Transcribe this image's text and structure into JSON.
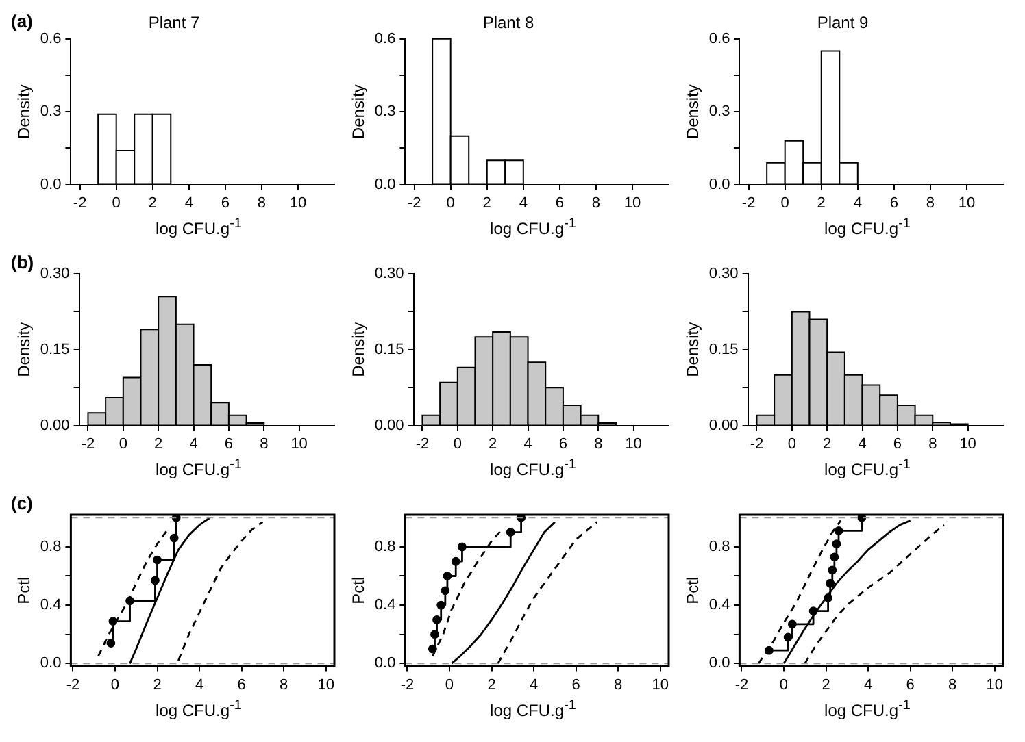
{
  "chart_data": [
    {
      "type": "histogram",
      "title": "Plant 7",
      "annotations": [
        "(a)"
      ],
      "bins": [
        -1,
        0,
        1,
        2,
        3
      ],
      "values": [
        0.29,
        0.14,
        0.29,
        0.29
      ],
      "color": "#ffffff",
      "xlabel": "log CFU.g$^{-1}$",
      "ylabel": "Density",
      "xlim": [
        -2.5,
        12
      ],
      "xticks": [
        -2,
        0,
        2,
        4,
        6,
        8,
        10
      ],
      "ylim": [
        0,
        0.6
      ],
      "yticks": [
        {
          "value": 0,
          "label": "0.0"
        },
        {
          "value": 0.15,
          "label": null
        },
        {
          "value": 0.3,
          "label": "0.3"
        },
        {
          "value": 0.45,
          "label": null
        },
        {
          "value": 0.6,
          "label": "0.6"
        }
      ]
    },
    {
      "type": "histogram",
      "title": "Plant 8",
      "bins": [
        -1,
        0,
        1,
        2,
        3,
        4
      ],
      "values": [
        0.6,
        0.2,
        0,
        0.1,
        0.1
      ],
      "color": "#ffffff",
      "xlabel": "log CFU.g$^{-1}$",
      "ylabel": "Density",
      "xlim": [
        -2.5,
        12
      ],
      "xticks": [
        -2,
        0,
        2,
        4,
        6,
        8,
        10
      ],
      "ylim": [
        0,
        0.6
      ],
      "yticks": [
        {
          "value": 0,
          "label": "0.0"
        },
        {
          "value": 0.15,
          "label": null
        },
        {
          "value": 0.3,
          "label": "0.3"
        },
        {
          "value": 0.45,
          "label": null
        },
        {
          "value": 0.6,
          "label": "0.6"
        }
      ]
    },
    {
      "type": "histogram",
      "title": "Plant 9",
      "bins": [
        -1,
        0,
        1,
        2,
        3,
        4
      ],
      "values": [
        0.09,
        0.18,
        0.09,
        0.55,
        0.09
      ],
      "color": "#ffffff",
      "xlabel": "log CFU.g$^{-1}$",
      "ylabel": "Density",
      "xlim": [
        -2.5,
        12
      ],
      "xticks": [
        -2,
        0,
        2,
        4,
        6,
        8,
        10
      ],
      "ylim": [
        0,
        0.6
      ],
      "yticks": [
        {
          "value": 0,
          "label": "0.0"
        },
        {
          "value": 0.15,
          "label": null
        },
        {
          "value": 0.3,
          "label": "0.3"
        },
        {
          "value": 0.45,
          "label": null
        },
        {
          "value": 0.6,
          "label": "0.6"
        }
      ]
    },
    {
      "type": "histogram",
      "annotations": [
        "(b)"
      ],
      "bins": [
        -2,
        -1,
        0,
        1,
        2,
        3,
        4,
        5,
        6,
        7,
        8
      ],
      "values": [
        0.025,
        0.055,
        0.095,
        0.19,
        0.255,
        0.2,
        0.12,
        0.045,
        0.02,
        0.005
      ],
      "color": "#c8c8c8",
      "xlabel": "log CFU.g$^{-1}$",
      "ylabel": "Density",
      "xlim": [
        -2.5,
        12
      ],
      "xticks": [
        -2,
        0,
        2,
        4,
        6,
        8,
        10
      ],
      "ylim": [
        0,
        0.3
      ],
      "yticks": [
        {
          "value": 0,
          "label": "0.00"
        },
        {
          "value": 0.075,
          "label": null
        },
        {
          "value": 0.15,
          "label": "0.15"
        },
        {
          "value": 0.225,
          "label": null
        },
        {
          "value": 0.3,
          "label": "0.30"
        }
      ]
    },
    {
      "type": "histogram",
      "bins": [
        -2,
        -1,
        0,
        1,
        2,
        3,
        4,
        5,
        6,
        7,
        8,
        9
      ],
      "values": [
        0.02,
        0.085,
        0.115,
        0.175,
        0.185,
        0.175,
        0.125,
        0.075,
        0.04,
        0.02,
        0.005
      ],
      "color": "#c8c8c8",
      "xlabel": "log CFU.g$^{-1}$",
      "ylabel": "Density",
      "xlim": [
        -2.5,
        12
      ],
      "xticks": [
        -2,
        0,
        2,
        4,
        6,
        8,
        10
      ],
      "ylim": [
        0,
        0.3
      ],
      "yticks": [
        {
          "value": 0,
          "label": "0.00"
        },
        {
          "value": 0.075,
          "label": null
        },
        {
          "value": 0.15,
          "label": "0.15"
        },
        {
          "value": 0.225,
          "label": null
        },
        {
          "value": 0.3,
          "label": "0.30"
        }
      ]
    },
    {
      "type": "histogram",
      "bins": [
        -2,
        -1,
        0,
        1,
        2,
        3,
        4,
        5,
        6,
        7,
        8,
        9,
        10
      ],
      "values": [
        0.02,
        0.1,
        0.225,
        0.21,
        0.145,
        0.1,
        0.08,
        0.06,
        0.04,
        0.02,
        0.006,
        0.003
      ],
      "color": "#c8c8c8",
      "xlabel": "log CFU.g$^{-1}$",
      "ylabel": "Density",
      "xlim": [
        -2.5,
        12
      ],
      "xticks": [
        -2,
        0,
        2,
        4,
        6,
        8,
        10
      ],
      "ylim": [
        0,
        0.3
      ],
      "yticks": [
        {
          "value": 0,
          "label": "0.00"
        },
        {
          "value": 0.075,
          "label": null
        },
        {
          "value": 0.15,
          "label": "0.15"
        },
        {
          "value": 0.225,
          "label": null
        },
        {
          "value": 0.3,
          "label": "0.30"
        }
      ]
    },
    {
      "type": "line",
      "annotations": [
        "(c)"
      ],
      "xlabel": "log CFU.g$^{-1}$",
      "ylabel": "Pctl",
      "xlim": [
        -2.1,
        10.4
      ],
      "xticks": [
        -2,
        0,
        2,
        4,
        6,
        8,
        10
      ],
      "ylim": [
        -0.02,
        1.02
      ],
      "yticks": [
        {
          "value": 0,
          "label": "0.0"
        },
        {
          "value": 0.2,
          "label": null
        },
        {
          "value": 0.4,
          "label": "0.4"
        },
        {
          "value": 0.6,
          "label": null
        },
        {
          "value": 0.8,
          "label": "0.8"
        }
      ],
      "ref_lines": [
        {
          "axis": "y",
          "value": 0,
          "color": "#999999",
          "line_style": "dashed"
        },
        {
          "axis": "y",
          "value": 1,
          "color": "#999999",
          "line_style": "dashed"
        }
      ],
      "series": [
        {
          "type": "step",
          "marker": "circle",
          "color": "#000000",
          "x": [
            -0.2,
            -0.1,
            0.7,
            1.9,
            2.0,
            2.8,
            2.9
          ],
          "values": [
            0.14,
            0.29,
            0.43,
            0.57,
            0.71,
            0.86,
            1.0
          ]
        },
        {
          "type": "line",
          "marker": "none",
          "color": "#000000",
          "line_style": "solid",
          "x": [
            0.7,
            1.0,
            1.5,
            2.0,
            2.5,
            3.0,
            3.5,
            4.0,
            4.5
          ],
          "values": [
            0,
            0.1,
            0.28,
            0.45,
            0.62,
            0.78,
            0.88,
            0.95,
            1.0
          ]
        },
        {
          "type": "line",
          "marker": "none",
          "color": "#000000",
          "line_style": "dashed",
          "x": [
            -0.8,
            -0.3,
            0.5,
            1.0,
            1.5,
            2.0,
            2.5
          ],
          "values": [
            0.05,
            0.2,
            0.4,
            0.55,
            0.7,
            0.82,
            0.92
          ]
        },
        {
          "type": "line",
          "marker": "none",
          "color": "#000000",
          "line_style": "dashed",
          "x": [
            3.0,
            3.5,
            4.0,
            4.5,
            5.0,
            5.5,
            6.0,
            6.5,
            7.0
          ],
          "values": [
            0.02,
            0.2,
            0.35,
            0.5,
            0.65,
            0.75,
            0.84,
            0.92,
            0.97
          ]
        }
      ]
    },
    {
      "type": "line",
      "xlabel": "log CFU.g$^{-1}$",
      "ylabel": "Pctl",
      "xlim": [
        -2.1,
        10.4
      ],
      "xticks": [
        -2,
        0,
        2,
        4,
        6,
        8,
        10
      ],
      "ylim": [
        -0.02,
        1.02
      ],
      "yticks": [
        {
          "value": 0,
          "label": "0.0"
        },
        {
          "value": 0.2,
          "label": null
        },
        {
          "value": 0.4,
          "label": "0.4"
        },
        {
          "value": 0.6,
          "label": null
        },
        {
          "value": 0.8,
          "label": "0.8"
        }
      ],
      "ref_lines": [
        {
          "axis": "y",
          "value": 0,
          "color": "#999999",
          "line_style": "dashed"
        },
        {
          "axis": "y",
          "value": 1,
          "color": "#999999",
          "line_style": "dashed"
        }
      ],
      "series": [
        {
          "type": "step",
          "marker": "circle",
          "color": "#000000",
          "x": [
            -0.8,
            -0.7,
            -0.6,
            -0.4,
            -0.2,
            -0.1,
            0.3,
            0.6,
            2.9,
            3.4
          ],
          "values": [
            0.1,
            0.2,
            0.3,
            0.4,
            0.5,
            0.6,
            0.7,
            0.8,
            0.9,
            1.0
          ]
        },
        {
          "type": "line",
          "marker": "none",
          "color": "#000000",
          "line_style": "solid",
          "x": [
            0.1,
            0.5,
            1.0,
            1.5,
            2.0,
            2.5,
            3.0,
            3.5,
            4.0,
            4.5,
            5.0
          ],
          "values": [
            0,
            0.05,
            0.12,
            0.2,
            0.3,
            0.41,
            0.53,
            0.66,
            0.78,
            0.9,
            0.97
          ]
        },
        {
          "type": "line",
          "marker": "none",
          "color": "#000000",
          "line_style": "dashed",
          "x": [
            -0.8,
            -0.3,
            0.1,
            0.7,
            1.3,
            2.0,
            2.5
          ],
          "values": [
            0.05,
            0.2,
            0.37,
            0.55,
            0.69,
            0.84,
            0.92
          ]
        },
        {
          "type": "line",
          "marker": "none",
          "color": "#000000",
          "line_style": "dashed",
          "x": [
            2.3,
            3.0,
            3.5,
            4.0,
            5.0,
            6.0,
            7.0
          ],
          "values": [
            0,
            0.18,
            0.32,
            0.45,
            0.65,
            0.85,
            0.97
          ]
        }
      ]
    },
    {
      "type": "line",
      "xlabel": "log CFU.g$^{-1}$",
      "ylabel": "Pctl",
      "xlim": [
        -2.1,
        10.4
      ],
      "xticks": [
        -2,
        0,
        2,
        4,
        6,
        8,
        10
      ],
      "ylim": [
        -0.02,
        1.02
      ],
      "yticks": [
        {
          "value": 0,
          "label": "0.0"
        },
        {
          "value": 0.2,
          "label": null
        },
        {
          "value": 0.4,
          "label": "0.4"
        },
        {
          "value": 0.6,
          "label": null
        },
        {
          "value": 0.8,
          "label": "0.8"
        }
      ],
      "ref_lines": [
        {
          "axis": "y",
          "value": 0,
          "color": "#999999",
          "line_style": "dashed"
        },
        {
          "axis": "y",
          "value": 1,
          "color": "#999999",
          "line_style": "dashed"
        }
      ],
      "series": [
        {
          "type": "step",
          "marker": "circle",
          "color": "#000000",
          "x": [
            -0.7,
            0.2,
            0.4,
            1.4,
            2.1,
            2.2,
            2.3,
            2.4,
            2.5,
            2.6,
            3.7
          ],
          "values": [
            0.09,
            0.18,
            0.27,
            0.36,
            0.45,
            0.55,
            0.64,
            0.73,
            0.82,
            0.91,
            1.0
          ]
        },
        {
          "type": "line",
          "marker": "none",
          "color": "#000000",
          "line_style": "solid",
          "x": [
            0,
            0.5,
            1,
            1.5,
            2,
            2.5,
            3,
            3.5,
            4,
            4.5,
            5,
            5.5,
            6
          ],
          "values": [
            0,
            0.12,
            0.24,
            0.35,
            0.45,
            0.55,
            0.63,
            0.7,
            0.78,
            0.84,
            0.9,
            0.95,
            0.98
          ]
        },
        {
          "type": "line",
          "marker": "none",
          "color": "#000000",
          "line_style": "dashed",
          "x": [
            -1.2,
            -0.5,
            0,
            0.6,
            1.2,
            1.8,
            2.3,
            2.7
          ],
          "values": [
            0,
            0.15,
            0.28,
            0.42,
            0.6,
            0.77,
            0.9,
            0.98
          ]
        },
        {
          "type": "line",
          "marker": "none",
          "color": "#000000",
          "line_style": "dashed",
          "x": [
            1,
            1.5,
            2,
            2.5,
            3,
            4,
            5,
            6,
            7,
            7.6
          ],
          "values": [
            0,
            0.12,
            0.22,
            0.32,
            0.4,
            0.52,
            0.62,
            0.75,
            0.88,
            0.95
          ]
        }
      ]
    }
  ]
}
